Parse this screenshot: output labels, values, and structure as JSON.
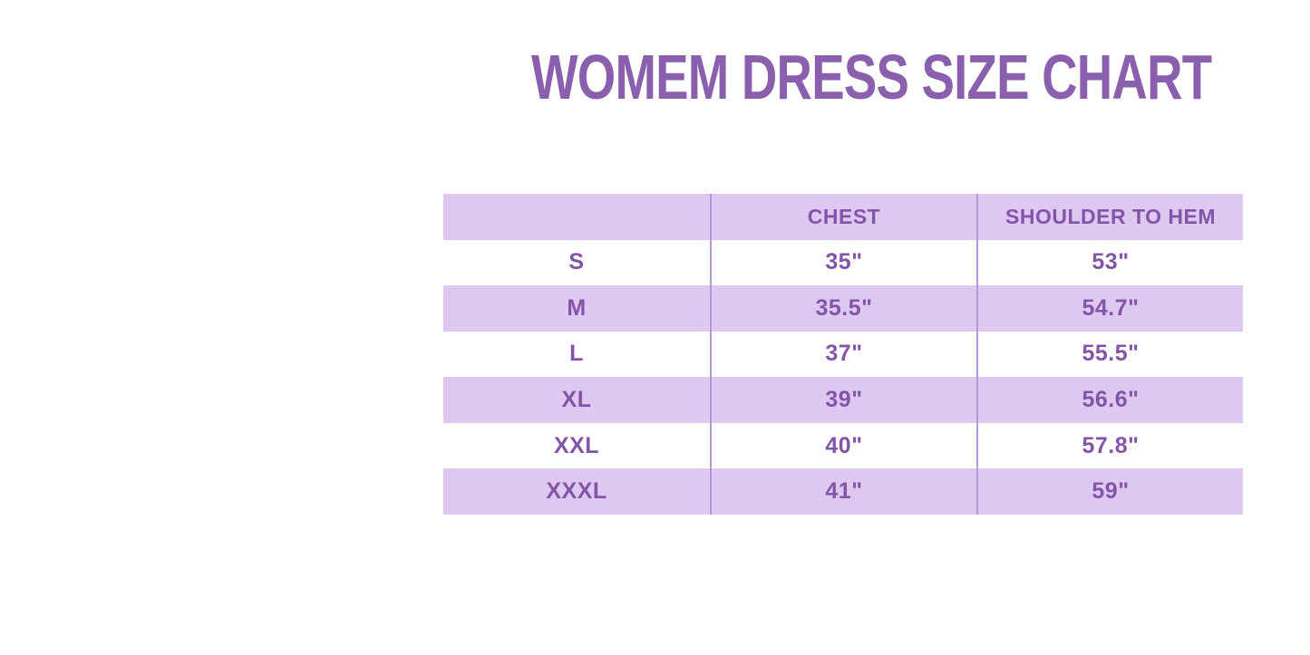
{
  "title": "WOMEM DRESS SIZE CHART",
  "colors": {
    "title": "#8a5fad",
    "text": "#8355a8",
    "row_highlight": "#dec8f1",
    "divider": "#b499d6",
    "background": "#ffffff"
  },
  "chart_data": {
    "type": "table",
    "title": "WOMEM DRESS SIZE CHART",
    "columns": [
      "",
      "CHEST",
      "SHOULDER TO HEM"
    ],
    "rows": [
      [
        "S",
        "35\"",
        "53\""
      ],
      [
        "M",
        "35.5\"",
        "54.7\""
      ],
      [
        "L",
        "37\"",
        "55.5\""
      ],
      [
        "XL",
        "39\"",
        "56.6\""
      ],
      [
        "XXL",
        "40\"",
        "57.8\""
      ],
      [
        "XXXL",
        "41\"",
        "59\""
      ]
    ],
    "layout": {
      "legend": "none",
      "grid": "vertical column dividers only, no horizontal borders, no outer border",
      "row_striping": "header row and alternating data rows (M, XL, XXXL) lavender; S, L, XXL white"
    }
  }
}
